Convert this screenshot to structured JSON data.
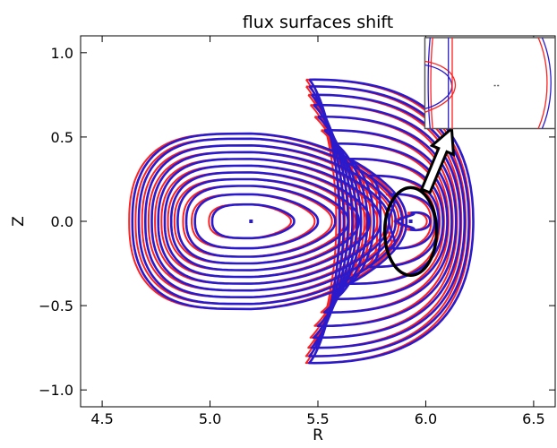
{
  "chart_data": {
    "type": "line",
    "title": "flux surfaces shift",
    "xlabel": "R",
    "ylabel": "Z",
    "xlim": [
      4.4,
      6.6
    ],
    "ylim": [
      -1.1,
      1.1
    ],
    "xticks": [
      4.5,
      5.0,
      5.5,
      6.0,
      6.5
    ],
    "xtick_labels": [
      "4.5",
      "5.0",
      "5.5",
      "6.0",
      "6.5"
    ],
    "yticks": [
      1.0,
      0.5,
      0.0,
      -0.5,
      -1.0
    ],
    "ytick_labels": [
      "1.0",
      "0.5",
      "0.0",
      "−0.5",
      "−1.0"
    ],
    "grid": false,
    "colors": {
      "series_a": "#2a1acc",
      "series_b": "#ff2020",
      "axis": "#000000",
      "annotation": "#000000"
    },
    "series": [
      {
        "color": "#2a1acc",
        "magnetic_axes": [
          [
            5.19,
            0.0
          ],
          [
            5.93,
            0.0
          ]
        ],
        "left_lobe": {
          "center": [
            5.19,
            0.0
          ],
          "surfaces": [
            {
              "r_in": 0.18,
              "r_out": 0.2,
              "h": 0.1
            },
            {
              "r_in": 0.26,
              "r_out": 0.31,
              "h": 0.16
            },
            {
              "r_in": 0.3,
              "r_out": 0.39,
              "h": 0.21
            },
            {
              "r_in": 0.34,
              "r_out": 0.45,
              "h": 0.25
            },
            {
              "r_in": 0.37,
              "r_out": 0.5,
              "h": 0.29
            },
            {
              "r_in": 0.4,
              "r_out": 0.55,
              "h": 0.33
            },
            {
              "r_in": 0.43,
              "r_out": 0.6,
              "h": 0.37
            },
            {
              "r_in": 0.46,
              "r_out": 0.64,
              "h": 0.41
            },
            {
              "r_in": 0.49,
              "r_out": 0.67,
              "h": 0.45
            },
            {
              "r_in": 0.52,
              "r_out": 0.7,
              "h": 0.49
            },
            {
              "r_in": 0.55,
              "r_out": 0.72,
              "h": 0.52
            }
          ]
        },
        "right_lobe": {
          "axis": [
            5.93,
            0.0
          ],
          "surfaces": [
            {
              "r_right": 6.02,
              "r_left": 5.87,
              "z_tip": 0.05,
              "r_tip": 5.93
            },
            {
              "r_right": 6.04,
              "r_left": 5.83,
              "z_tip": 0.16,
              "r_tip": 5.83
            },
            {
              "r_right": 6.06,
              "r_left": 5.79,
              "z_tip": 0.27,
              "r_tip": 5.73
            },
            {
              "r_right": 6.08,
              "r_left": 5.76,
              "z_tip": 0.37,
              "r_tip": 5.64
            },
            {
              "r_right": 6.1,
              "r_left": 5.73,
              "z_tip": 0.46,
              "r_tip": 5.58
            },
            {
              "r_right": 6.12,
              "r_left": 5.7,
              "z_tip": 0.54,
              "r_tip": 5.53
            },
            {
              "r_right": 6.14,
              "r_left": 5.68,
              "z_tip": 0.62,
              "r_tip": 5.5
            },
            {
              "r_right": 6.16,
              "r_left": 5.66,
              "z_tip": 0.69,
              "r_tip": 5.48
            },
            {
              "r_right": 6.18,
              "r_left": 5.64,
              "z_tip": 0.75,
              "r_tip": 5.47
            },
            {
              "r_right": 6.2,
              "r_left": 5.62,
              "z_tip": 0.8,
              "r_tip": 5.46
            },
            {
              "r_right": 6.22,
              "r_left": 5.6,
              "z_tip": 0.84,
              "r_tip": 5.46
            }
          ]
        }
      },
      {
        "color": "#ff2020",
        "shift_r": -0.015,
        "note_shift": "near-identical surfaces, shifted slightly inward"
      }
    ],
    "annotations": {
      "ellipse": {
        "center": [
          5.93,
          -0.06
        ],
        "rx": 0.12,
        "ry": 0.26
      },
      "arrow": {
        "from": [
          6.0,
          0.18
        ],
        "to": [
          6.12,
          0.55
        ]
      },
      "inset": {
        "xlim": [
          6.0,
          6.6
        ],
        "ylim": [
          0.55,
          1.1
        ],
        "description_visible": false
      }
    }
  }
}
